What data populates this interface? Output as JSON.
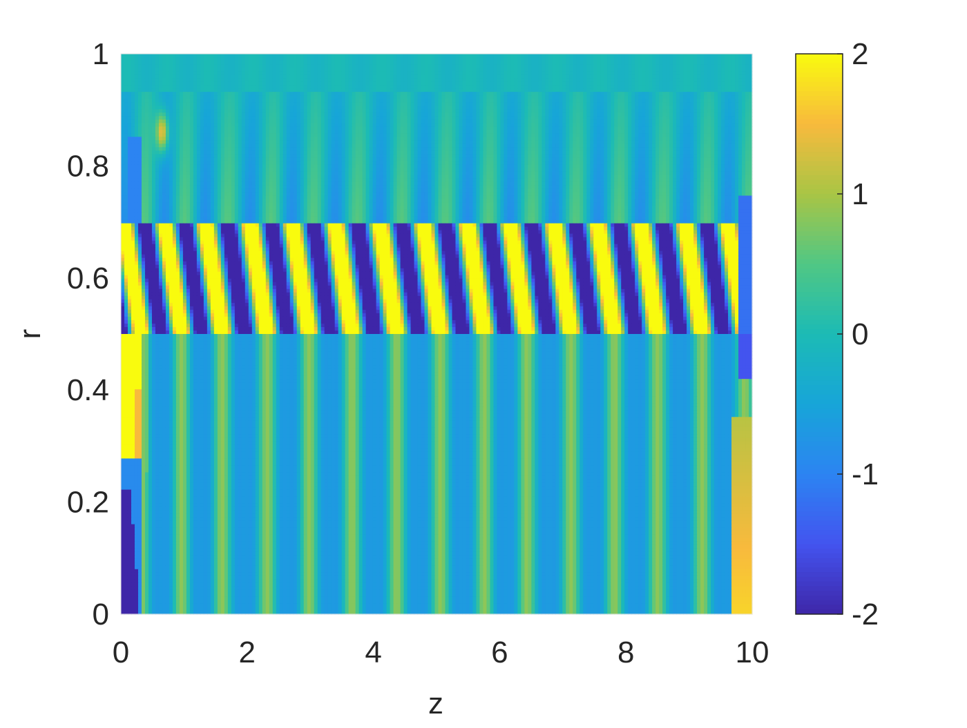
{
  "chart_data": {
    "type": "heatmap",
    "title": "",
    "xlabel": "z",
    "ylabel": "r",
    "xlim": [
      0,
      10
    ],
    "ylim": [
      0,
      1
    ],
    "xticks": [
      "0",
      "2",
      "4",
      "6",
      "8",
      "10"
    ],
    "yticks": [
      "0",
      "0.2",
      "0.4",
      "0.6",
      "0.8",
      "1"
    ],
    "grid": false,
    "colormap": "parula",
    "clim": [
      -2,
      2
    ],
    "colorbar": {
      "location": "right",
      "ticks": [
        "-2",
        "-1",
        "0",
        "1",
        "2"
      ]
    },
    "colormap_stops": [
      "#3e26a8",
      "#4354ef",
      "#2c84f2",
      "#17a5d8",
      "#1cbbb5",
      "#50c784",
      "#a9c545",
      "#f8ba3d",
      "#f9fb0e"
    ],
    "features": {
      "stripe_band": {
        "r_range": [
          0.5,
          0.7
        ],
        "z_range": [
          0,
          9.8
        ],
        "values": [
          -2,
          2
        ]
      },
      "yellow_stripe_centers_z_at_r_0_7": [
        0.69,
        1.33,
        2.05,
        2.71,
        3.39,
        4.1,
        4.79,
        5.49,
        6.16,
        6.86,
        7.55,
        8.23,
        8.94,
        9.61
      ],
      "stripe_shift_z_from_r_0_7_to_r_0_5": 0.27,
      "left_yellow_region": {
        "z_range": [
          0,
          0.35
        ],
        "r_range": [
          0.28,
          0.5
        ],
        "value": 2
      },
      "left_blue_region": {
        "z_range": [
          0,
          0.3
        ],
        "r_range": [
          0,
          0.22
        ],
        "value": -2
      },
      "right_orange_region": {
        "z_range": [
          9.65,
          10
        ],
        "r_range": [
          0,
          0.35
        ],
        "value": 1.4
      },
      "upper_orange_spot": {
        "z": 0.65,
        "r": 0.86,
        "value": 1.4
      }
    }
  }
}
